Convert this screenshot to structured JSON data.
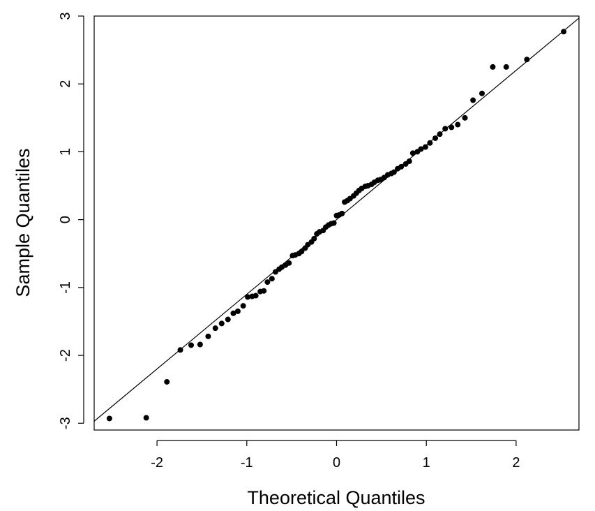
{
  "chart_data": {
    "type": "scatter",
    "title": "",
    "xlabel": "Theoretical Quantiles",
    "ylabel": "Sample Quantiles",
    "xlim": [
      -2.7,
      2.7
    ],
    "ylim": [
      -3.1,
      3.0
    ],
    "xticks": [
      -2,
      -1,
      0,
      1,
      2
    ],
    "yticks": [
      -3,
      -2,
      -1,
      0,
      1,
      2,
      3
    ],
    "xtick_labels": [
      "-2",
      "-1",
      "0",
      "1",
      "2"
    ],
    "ytick_labels": [
      "-3",
      "-2",
      "-1",
      "0",
      "1",
      "2",
      "3"
    ],
    "reference_line": {
      "intercept": 0.0,
      "slope": 1.1
    },
    "grid": false,
    "points": [
      [
        -2.53,
        -2.93
      ],
      [
        -2.12,
        -2.92
      ],
      [
        -1.89,
        -2.39
      ],
      [
        -1.74,
        -1.92
      ],
      [
        -1.62,
        -1.85
      ],
      [
        -1.52,
        -1.84
      ],
      [
        -1.43,
        -1.72
      ],
      [
        -1.35,
        -1.6
      ],
      [
        -1.28,
        -1.53
      ],
      [
        -1.21,
        -1.47
      ],
      [
        -1.15,
        -1.38
      ],
      [
        -1.1,
        -1.35
      ],
      [
        -1.04,
        -1.27
      ],
      [
        -0.99,
        -1.14
      ],
      [
        -0.94,
        -1.13
      ],
      [
        -0.9,
        -1.12
      ],
      [
        -0.85,
        -1.06
      ],
      [
        -0.81,
        -1.05
      ],
      [
        -0.77,
        -0.92
      ],
      [
        -0.72,
        -0.87
      ],
      [
        -0.68,
        -0.77
      ],
      [
        -0.64,
        -0.73
      ],
      [
        -0.61,
        -0.7
      ],
      [
        -0.57,
        -0.67
      ],
      [
        -0.53,
        -0.64
      ],
      [
        -0.49,
        -0.53
      ],
      [
        -0.46,
        -0.52
      ],
      [
        -0.42,
        -0.5
      ],
      [
        -0.39,
        -0.47
      ],
      [
        -0.35,
        -0.42
      ],
      [
        -0.32,
        -0.37
      ],
      [
        -0.28,
        -0.33
      ],
      [
        -0.25,
        -0.28
      ],
      [
        -0.22,
        -0.21
      ],
      [
        -0.19,
        -0.18
      ],
      [
        -0.15,
        -0.16
      ],
      [
        -0.12,
        -0.11
      ],
      [
        -0.09,
        -0.08
      ],
      [
        -0.06,
        -0.06
      ],
      [
        -0.03,
        -0.05
      ],
      [
        0.0,
        0.06
      ],
      [
        0.03,
        0.07
      ],
      [
        0.06,
        0.09
      ],
      [
        0.09,
        0.26
      ],
      [
        0.12,
        0.28
      ],
      [
        0.15,
        0.31
      ],
      [
        0.19,
        0.35
      ],
      [
        0.22,
        0.39
      ],
      [
        0.25,
        0.43
      ],
      [
        0.28,
        0.46
      ],
      [
        0.32,
        0.49
      ],
      [
        0.35,
        0.5
      ],
      [
        0.39,
        0.52
      ],
      [
        0.42,
        0.55
      ],
      [
        0.46,
        0.58
      ],
      [
        0.49,
        0.59
      ],
      [
        0.53,
        0.62
      ],
      [
        0.57,
        0.66
      ],
      [
        0.61,
        0.68
      ],
      [
        0.64,
        0.7
      ],
      [
        0.68,
        0.75
      ],
      [
        0.72,
        0.78
      ],
      [
        0.77,
        0.82
      ],
      [
        0.81,
        0.86
      ],
      [
        0.85,
        0.98
      ],
      [
        0.9,
        1.0
      ],
      [
        0.94,
        1.04
      ],
      [
        0.99,
        1.07
      ],
      [
        1.04,
        1.13
      ],
      [
        1.1,
        1.2
      ],
      [
        1.15,
        1.26
      ],
      [
        1.21,
        1.34
      ],
      [
        1.28,
        1.36
      ],
      [
        1.35,
        1.4
      ],
      [
        1.43,
        1.5
      ],
      [
        1.52,
        1.76
      ],
      [
        1.62,
        1.86
      ],
      [
        1.74,
        2.25
      ],
      [
        1.89,
        2.25
      ],
      [
        2.12,
        2.36
      ],
      [
        2.53,
        2.77
      ]
    ]
  }
}
